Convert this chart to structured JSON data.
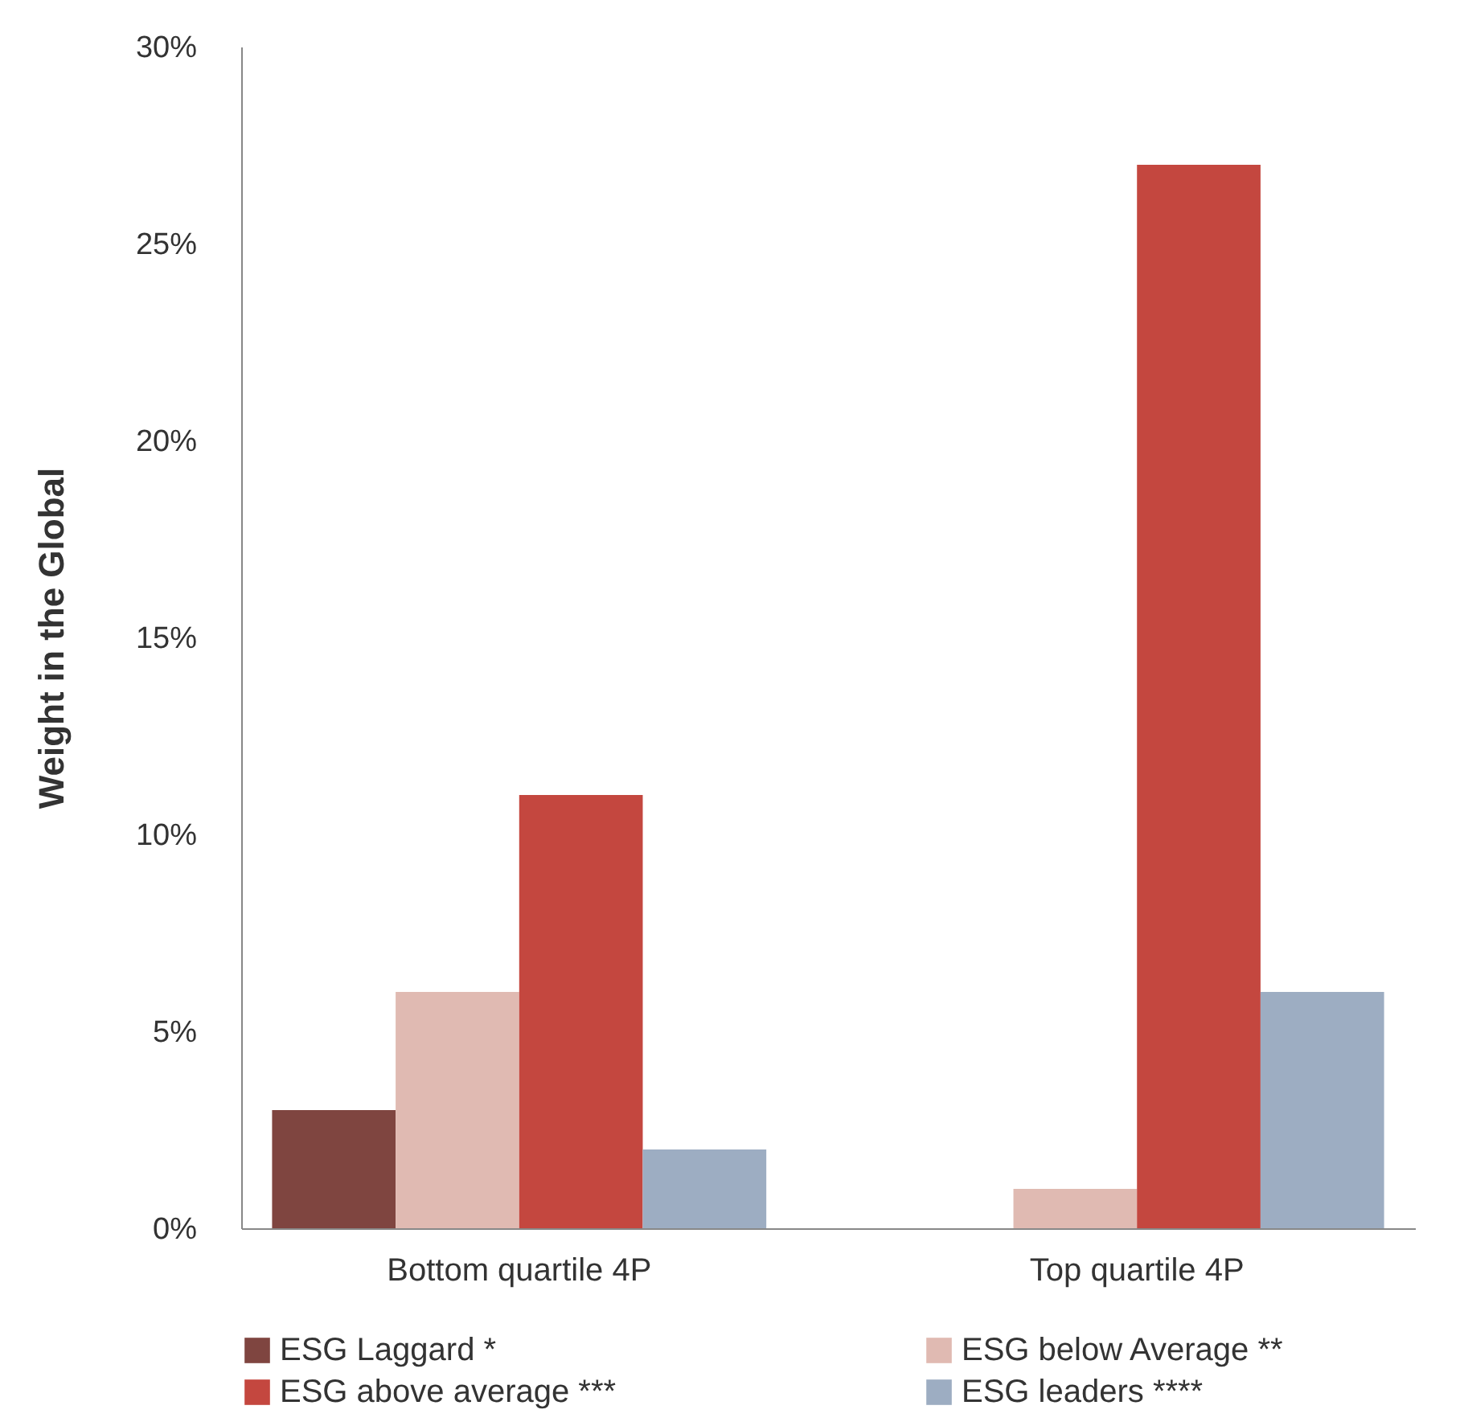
{
  "chart_data": {
    "type": "bar",
    "ylabel": "Weight in the Global",
    "categories": [
      "Bottom quartile 4P",
      "Top quartile 4P"
    ],
    "series": [
      {
        "name": "ESG Laggard *",
        "color": "#7f4540",
        "values": [
          3,
          0
        ]
      },
      {
        "name": "ESG below Average **",
        "color": "#e0bab2",
        "values": [
          6,
          1
        ]
      },
      {
        "name": "ESG above average ***",
        "color": "#c4473f",
        "values": [
          11,
          27
        ]
      },
      {
        "name": "ESG leaders ****",
        "color": "#9dadc2",
        "values": [
          2,
          6
        ]
      }
    ],
    "ylim": [
      0,
      30
    ],
    "yticks": [
      {
        "value": 0,
        "label": "0%"
      },
      {
        "value": 5,
        "label": "5%"
      },
      {
        "value": 10,
        "label": "10%"
      },
      {
        "value": 15,
        "label": "15%"
      },
      {
        "value": 20,
        "label": "20%"
      },
      {
        "value": 25,
        "label": "25%"
      },
      {
        "value": 30,
        "label": "30%"
      }
    ],
    "grid": false,
    "legend": "bottom"
  }
}
